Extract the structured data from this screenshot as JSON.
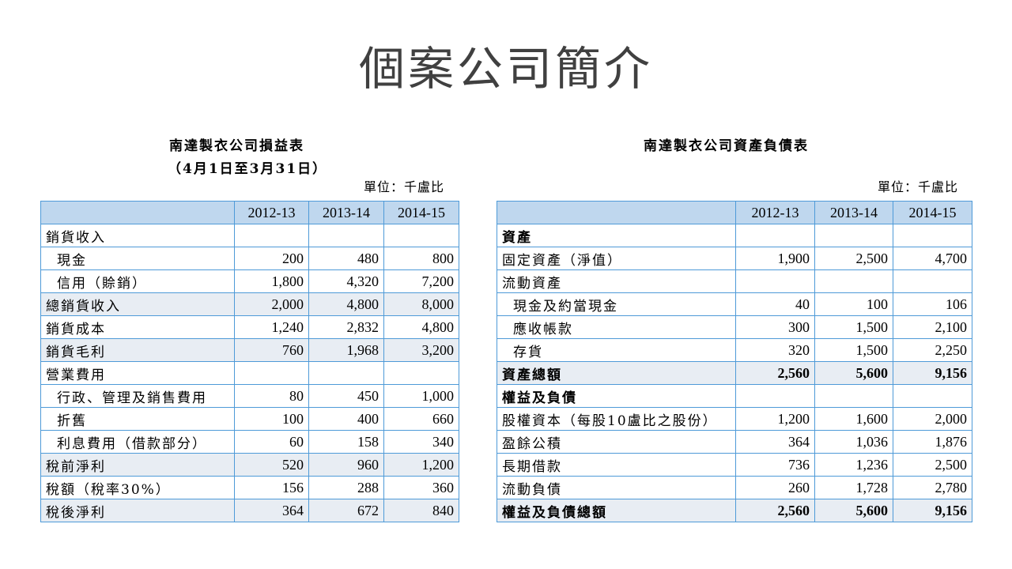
{
  "slide": {
    "title": "個案公司簡介"
  },
  "income_statement": {
    "title": "南達製衣公司損益表",
    "period": "（4月1日至3月31日）",
    "unit": "單位：千盧比",
    "columns": [
      "",
      "2012-13",
      "2013-14",
      "2014-15"
    ],
    "rows": [
      {
        "label": "銷貨收入",
        "values": [
          "",
          "",
          ""
        ],
        "shaded": false,
        "indent": false,
        "bold": false
      },
      {
        "label": "現金",
        "values": [
          "200",
          "480",
          "800"
        ],
        "shaded": false,
        "indent": true,
        "bold": false
      },
      {
        "label": "信用（賒銷）",
        "values": [
          "1,800",
          "4,320",
          "7,200"
        ],
        "shaded": false,
        "indent": true,
        "bold": false
      },
      {
        "label": "總銷貨收入",
        "values": [
          "2,000",
          "4,800",
          "8,000"
        ],
        "shaded": true,
        "indent": false,
        "bold": false
      },
      {
        "label": "銷貨成本",
        "values": [
          "1,240",
          "2,832",
          "4,800"
        ],
        "shaded": false,
        "indent": false,
        "bold": false
      },
      {
        "label": "銷貨毛利",
        "values": [
          "760",
          "1,968",
          "3,200"
        ],
        "shaded": true,
        "indent": false,
        "bold": false
      },
      {
        "label": "營業費用",
        "values": [
          "",
          "",
          ""
        ],
        "shaded": false,
        "indent": false,
        "bold": false
      },
      {
        "label": "行政、管理及銷售費用",
        "values": [
          "80",
          "450",
          "1,000"
        ],
        "shaded": false,
        "indent": true,
        "bold": false
      },
      {
        "label": "折舊",
        "values": [
          "100",
          "400",
          "660"
        ],
        "shaded": false,
        "indent": true,
        "bold": false
      },
      {
        "label": "利息費用（借款部分）",
        "values": [
          "60",
          "158",
          "340"
        ],
        "shaded": false,
        "indent": true,
        "bold": false
      },
      {
        "label": "稅前淨利",
        "values": [
          "520",
          "960",
          "1,200"
        ],
        "shaded": true,
        "indent": false,
        "bold": false
      },
      {
        "label": "稅額（稅率30%）",
        "values": [
          "156",
          "288",
          "360"
        ],
        "shaded": false,
        "indent": false,
        "bold": false
      },
      {
        "label": "稅後淨利",
        "values": [
          "364",
          "672",
          "840"
        ],
        "shaded": true,
        "indent": false,
        "bold": false
      }
    ]
  },
  "balance_sheet": {
    "title": "南達製衣公司資產負債表",
    "unit": "單位：千盧比",
    "columns": [
      "",
      "2012-13",
      "2013-14",
      "2014-15"
    ],
    "rows": [
      {
        "label": "資產",
        "values": [
          "",
          "",
          ""
        ],
        "shaded": false,
        "indent": false,
        "bold": true
      },
      {
        "label": "固定資產（淨值）",
        "values": [
          "1,900",
          "2,500",
          "4,700"
        ],
        "shaded": false,
        "indent": false,
        "bold": false
      },
      {
        "label": "流動資產",
        "values": [
          "",
          "",
          ""
        ],
        "shaded": false,
        "indent": false,
        "bold": false
      },
      {
        "label": "現金及約當現金",
        "values": [
          "40",
          "100",
          "106"
        ],
        "shaded": false,
        "indent": true,
        "bold": false
      },
      {
        "label": "應收帳款",
        "values": [
          "300",
          "1,500",
          "2,100"
        ],
        "shaded": false,
        "indent": true,
        "bold": false
      },
      {
        "label": "存貨",
        "values": [
          "320",
          "1,500",
          "2,250"
        ],
        "shaded": false,
        "indent": true,
        "bold": false
      },
      {
        "label": "資產總額",
        "values": [
          "2,560",
          "5,600",
          "9,156"
        ],
        "shaded": true,
        "indent": false,
        "bold": true
      },
      {
        "label": "權益及負債",
        "values": [
          "",
          "",
          ""
        ],
        "shaded": false,
        "indent": false,
        "bold": true
      },
      {
        "label": "股權資本（每股10盧比之股份）",
        "values": [
          "1,200",
          "1,600",
          "2,000"
        ],
        "shaded": false,
        "indent": false,
        "bold": false
      },
      {
        "label": "盈餘公積",
        "values": [
          "364",
          "1,036",
          "1,876"
        ],
        "shaded": false,
        "indent": false,
        "bold": false
      },
      {
        "label": "長期借款",
        "values": [
          "736",
          "1,236",
          "2,500"
        ],
        "shaded": false,
        "indent": false,
        "bold": false
      },
      {
        "label": "流動負債",
        "values": [
          "260",
          "1,728",
          "2,780"
        ],
        "shaded": false,
        "indent": false,
        "bold": false
      },
      {
        "label": "權益及負債總額",
        "values": [
          "2,560",
          "5,600",
          "9,156"
        ],
        "shaded": true,
        "indent": false,
        "bold": true
      }
    ]
  },
  "colors": {
    "border": "#4e9ad8",
    "header_fill": "#bfd7ee",
    "shaded_row": "#e8edf3",
    "title_text": "#404040"
  }
}
